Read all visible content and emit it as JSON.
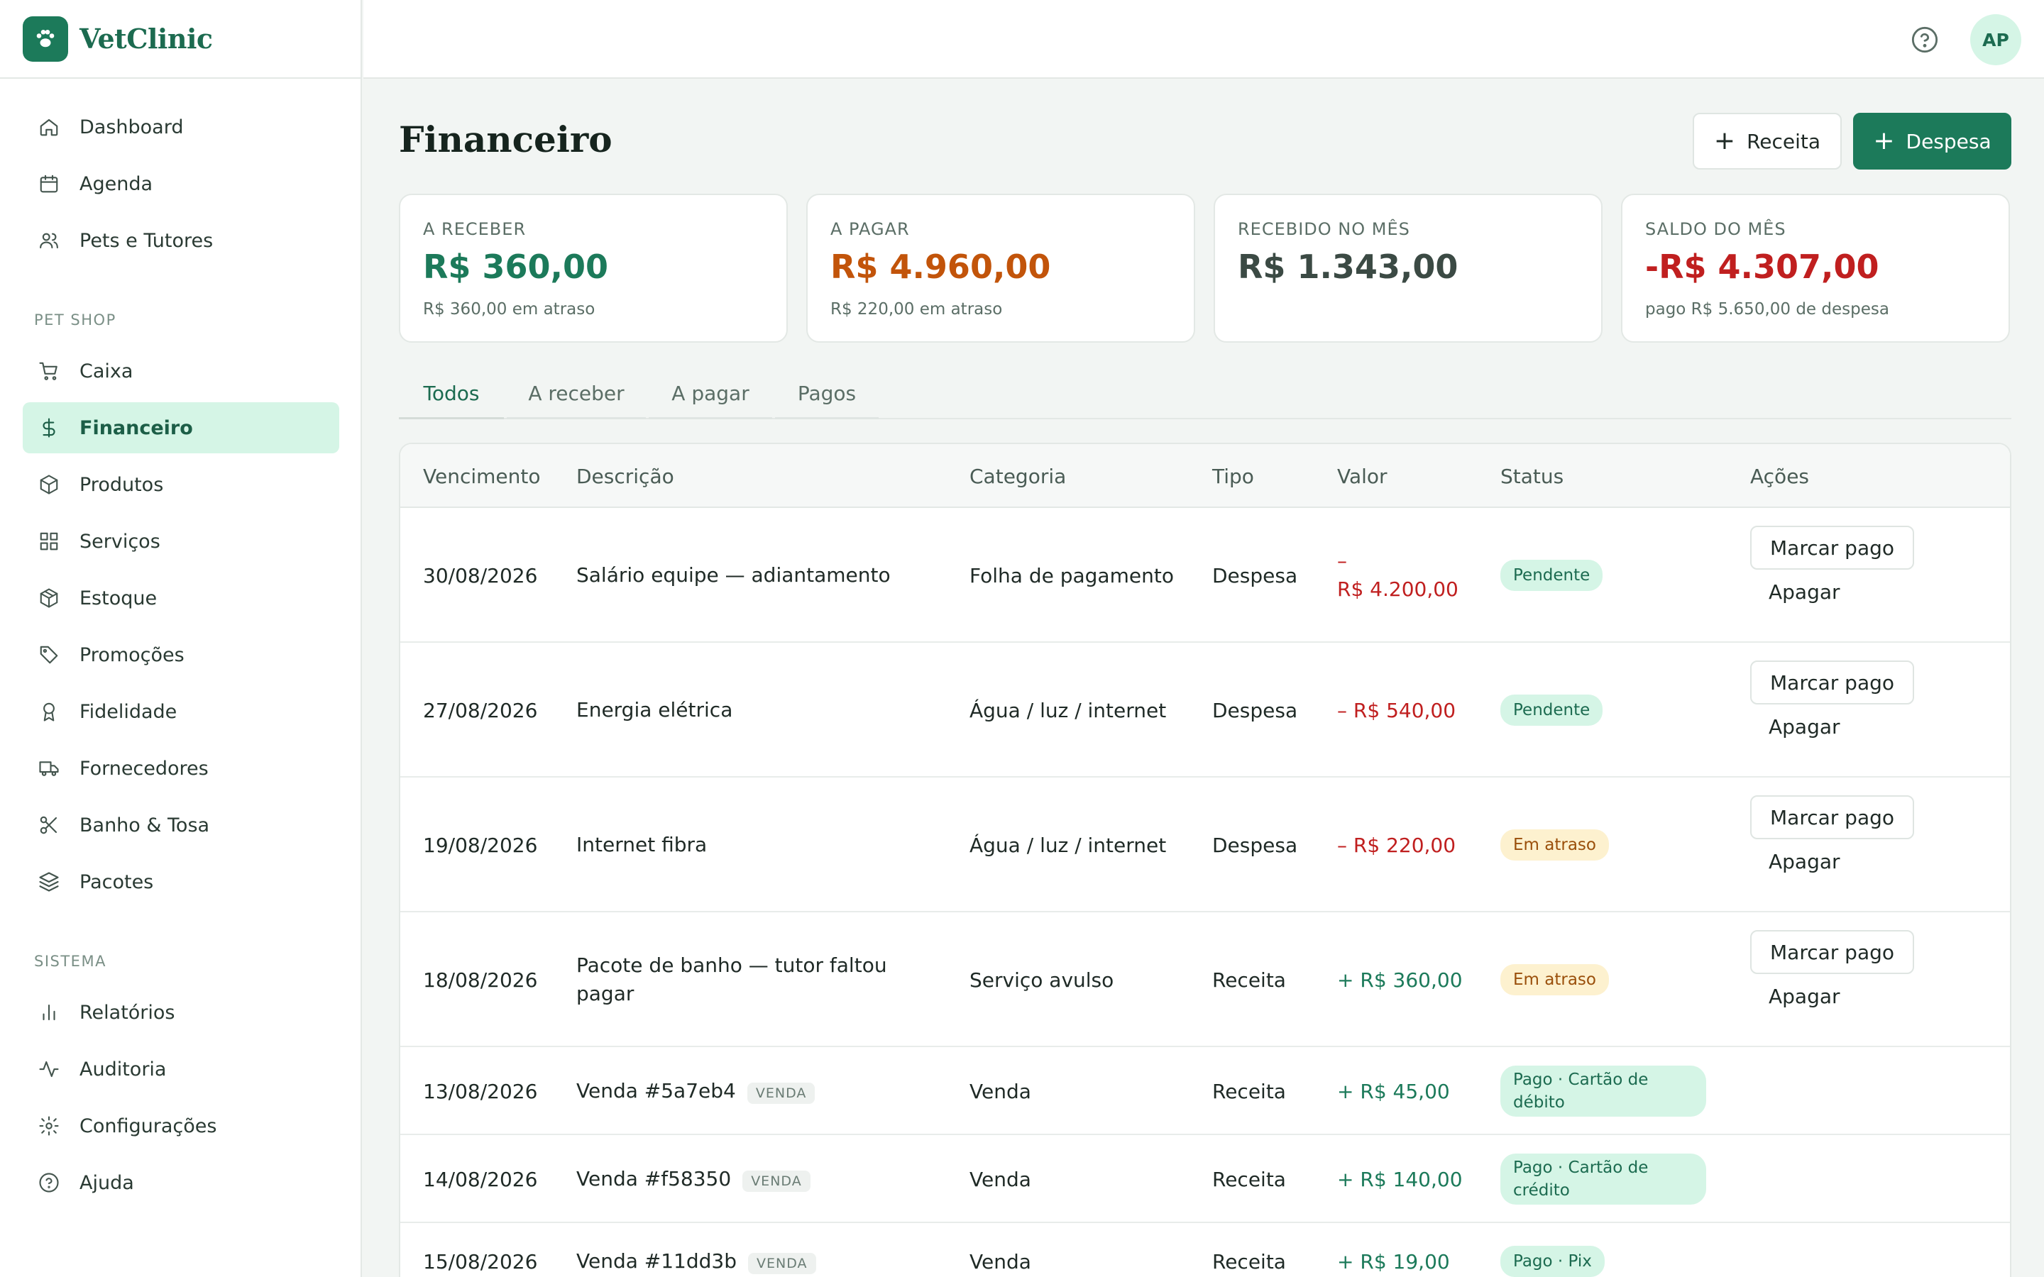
{
  "brand": {
    "name": "VetClinic",
    "logo_icon": "paw-icon",
    "accent": "#1c7a5a"
  },
  "sidebar": {
    "items": [
      {
        "label": "Dashboard",
        "icon": "home-icon"
      },
      {
        "label": "Agenda",
        "icon": "calendar-icon"
      },
      {
        "label": "Pets e Tutores",
        "icon": "users-icon"
      }
    ],
    "section_petshop": "PET SHOP",
    "petshop_items": [
      {
        "label": "Caixa",
        "icon": "cart-icon"
      },
      {
        "label": "Financeiro",
        "icon": "dollar-icon",
        "active": true
      },
      {
        "label": "Produtos",
        "icon": "box-icon"
      },
      {
        "label": "Serviços",
        "icon": "grid-icon"
      },
      {
        "label": "Estoque",
        "icon": "package-icon"
      },
      {
        "label": "Promoções",
        "icon": "tag-icon"
      },
      {
        "label": "Fidelidade",
        "icon": "award-icon"
      },
      {
        "label": "Fornecedores",
        "icon": "truck-icon"
      },
      {
        "label": "Banho & Tosa",
        "icon": "scissors-icon"
      },
      {
        "label": "Pacotes",
        "icon": "layers-icon"
      }
    ],
    "section_sistema": "SISTEMA",
    "sistema_items": [
      {
        "label": "Relatórios",
        "icon": "bar-chart-icon"
      },
      {
        "label": "Auditoria",
        "icon": "activity-icon"
      },
      {
        "label": "Configurações",
        "icon": "gear-icon"
      },
      {
        "label": "Ajuda",
        "icon": "help-icon"
      }
    ]
  },
  "topbar": {
    "avatar_initials": "AP",
    "help_icon": "help-circle-icon"
  },
  "page": {
    "title": "Financeiro",
    "btn_receita": "Receita",
    "btn_despesa": "Despesa"
  },
  "cards": [
    {
      "label": "A RECEBER",
      "value": "R$ 360,00",
      "sub": "R$ 360,00 em atraso",
      "color": "#1c7a5a"
    },
    {
      "label": "A PAGAR",
      "value": "R$ 4.960,00",
      "sub": "R$ 220,00 em atraso",
      "color": "#c2540a"
    },
    {
      "label": "RECEBIDO NO MÊS",
      "value": "R$ 1.343,00",
      "sub": "",
      "color": "#3b4a44"
    },
    {
      "label": "SALDO DO MÊS",
      "value": "-R$ 4.307,00",
      "sub": "pago R$ 5.650,00 de despesa",
      "color": "#c01f1f"
    }
  ],
  "tabs": [
    "Todos",
    "A receber",
    "A pagar",
    "Pagos"
  ],
  "table": {
    "headers": [
      "Vencimento",
      "Descrição",
      "Categoria",
      "Tipo",
      "Valor",
      "Status",
      "Ações"
    ],
    "action_pay": "Marcar pago",
    "action_delete": "Apagar",
    "rows": [
      {
        "date": "30/08/2026",
        "desc": "Salário equipe — adiantamento",
        "tag": "",
        "cat": "Folha de pagamento",
        "type": "Despesa",
        "value_sign": "–",
        "value": "R$ 4.200,00",
        "value_kind": "neg",
        "status": "Pendente",
        "status_kind": "pend",
        "actions": true
      },
      {
        "date": "27/08/2026",
        "desc": "Energia elétrica",
        "tag": "",
        "cat": "Água / luz / internet",
        "type": "Despesa",
        "value_sign": "–",
        "value": "R$ 540,00",
        "value_kind": "neg",
        "status": "Pendente",
        "status_kind": "pend",
        "actions": true
      },
      {
        "date": "19/08/2026",
        "desc": "Internet fibra",
        "tag": "",
        "cat": "Água / luz / internet",
        "type": "Despesa",
        "value_sign": "–",
        "value": "R$ 220,00",
        "value_kind": "neg",
        "status": "Em atraso",
        "status_kind": "late",
        "actions": true
      },
      {
        "date": "18/08/2026",
        "desc": "Pacote de banho — tutor faltou pagar",
        "tag": "",
        "cat": "Serviço avulso",
        "type": "Receita",
        "value_sign": "+",
        "value": "R$ 360,00",
        "value_kind": "pos",
        "status": "Em atraso",
        "status_kind": "late",
        "actions": true
      },
      {
        "date": "13/08/2026",
        "desc": "Venda #5a7eb4",
        "tag": "VENDA",
        "cat": "Venda",
        "type": "Receita",
        "value_sign": "+",
        "value": "R$ 45,00",
        "value_kind": "pos",
        "status": "Pago · Cartão de débito",
        "status_kind": "paid",
        "actions": false
      },
      {
        "date": "14/08/2026",
        "desc": "Venda #f58350",
        "tag": "VENDA",
        "cat": "Venda",
        "type": "Receita",
        "value_sign": "+",
        "value": "R$ 140,00",
        "value_kind": "pos",
        "status": "Pago · Cartão de crédito",
        "status_kind": "paid",
        "actions": false
      },
      {
        "date": "15/08/2026",
        "desc": "Venda #11dd3b",
        "tag": "VENDA",
        "cat": "Venda",
        "type": "Receita",
        "value_sign": "+",
        "value": "R$ 19,00",
        "value_kind": "pos",
        "status": "Pago · Pix",
        "status_kind": "paid",
        "actions": false
      }
    ]
  }
}
